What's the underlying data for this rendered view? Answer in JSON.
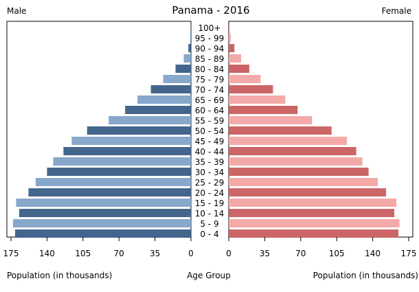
{
  "chart_data": {
    "type": "bar",
    "title": "Panama - 2016",
    "left_label": "Male",
    "right_label": "Female",
    "xlabel_left": "Population (in thousands)",
    "xlabel_center": "Age Group",
    "xlabel_right": "Population (in thousands)",
    "xlim": [
      0,
      175
    ],
    "xticks": [
      0,
      35,
      70,
      105,
      140,
      175
    ],
    "categories": [
      "0 - 4",
      "5 - 9",
      "10 - 14",
      "15 - 19",
      "20 - 24",
      "25 - 29",
      "30 - 34",
      "35 - 39",
      "40 - 44",
      "45 - 49",
      "50 - 54",
      "55 - 59",
      "60 - 64",
      "65 - 69",
      "70 - 74",
      "75 - 79",
      "80 - 84",
      "85 - 89",
      "90 - 94",
      "95 - 99",
      "100+"
    ],
    "series": [
      {
        "name": "Male",
        "side": "left",
        "values": [
          171,
          173,
          167,
          170,
          158,
          151,
          140,
          134,
          124,
          116,
          101,
          80,
          64,
          52,
          39,
          27,
          15,
          7,
          2.5,
          0.8,
          0.2
        ]
      },
      {
        "name": "Female",
        "side": "right",
        "values": [
          165,
          166,
          161,
          163,
          153,
          145,
          136,
          130,
          124,
          115,
          100,
          81,
          67,
          55,
          43,
          31,
          20,
          12,
          5.5,
          2,
          0.6
        ]
      }
    ],
    "colors": {
      "male_dark": "#44668c",
      "male_light": "#87a7cb",
      "female_dark": "#cc6666",
      "female_light": "#f4a9a9"
    },
    "grid": false
  }
}
